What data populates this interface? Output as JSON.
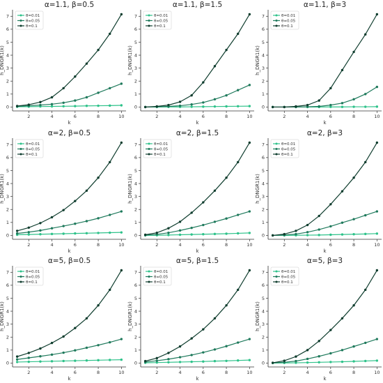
{
  "chart_data": [
    {
      "type": "line",
      "title": "α=1.1, β=0.5",
      "xlabel": "k",
      "ylabel": "h_DNGR1(k)",
      "x": [
        1,
        2,
        3,
        4,
        5,
        6,
        7,
        8,
        9,
        10
      ],
      "xticks": [
        2,
        4,
        6,
        8,
        10
      ],
      "yticks": [
        0,
        1,
        2,
        3,
        4,
        5,
        6,
        7
      ],
      "xlim": [
        0.6,
        10.4
      ],
      "ylim": [
        -0.3,
        7.5
      ],
      "grid": false,
      "legend": "top-left",
      "series": [
        {
          "name": "θ=0.01",
          "color": "#2ec28a",
          "values": [
            0.02,
            0.03,
            0.04,
            0.05,
            0.06,
            0.07,
            0.09,
            0.1,
            0.11,
            0.13
          ]
        },
        {
          "name": "θ=0.05",
          "color": "#1f7a5c",
          "values": [
            0.05,
            0.1,
            0.15,
            0.22,
            0.33,
            0.5,
            0.75,
            1.1,
            1.45,
            1.8
          ]
        },
        {
          "name": "θ=0.1",
          "color": "#0f3d2e",
          "values": [
            0.08,
            0.18,
            0.38,
            0.75,
            1.45,
            2.35,
            3.35,
            4.4,
            5.65,
            7.15
          ]
        }
      ]
    },
    {
      "type": "line",
      "title": "α=1.1, β=1.5",
      "xlabel": "k",
      "ylabel": "h_DNGR1(k)",
      "x": [
        1,
        2,
        3,
        4,
        5,
        6,
        7,
        8,
        9,
        10
      ],
      "xticks": [
        2,
        4,
        6,
        8,
        10
      ],
      "yticks": [
        0,
        1,
        2,
        3,
        4,
        5,
        6,
        7
      ],
      "xlim": [
        0.6,
        10.4
      ],
      "ylim": [
        -0.3,
        7.5
      ],
      "grid": false,
      "legend": "top-left",
      "series": [
        {
          "name": "θ=0.01",
          "color": "#2ec28a",
          "values": [
            0.0,
            0.0,
            0.01,
            0.01,
            0.02,
            0.03,
            0.04,
            0.05,
            0.06,
            0.07
          ]
        },
        {
          "name": "θ=0.05",
          "color": "#1f7a5c",
          "values": [
            0.0,
            0.02,
            0.05,
            0.1,
            0.2,
            0.35,
            0.6,
            0.9,
            1.3,
            1.7
          ]
        },
        {
          "name": "θ=0.1",
          "color": "#0f3d2e",
          "values": [
            0.0,
            0.05,
            0.15,
            0.4,
            0.9,
            1.9,
            3.15,
            4.4,
            5.65,
            7.15
          ]
        }
      ]
    },
    {
      "type": "line",
      "title": "α=1.1, β=3",
      "xlabel": "k",
      "ylabel": "h_DNGR1(k)",
      "x": [
        1,
        2,
        3,
        4,
        5,
        6,
        7,
        8,
        9,
        10
      ],
      "xticks": [
        2,
        4,
        6,
        8,
        10
      ],
      "yticks": [
        0,
        1,
        2,
        3,
        4,
        5,
        6,
        7
      ],
      "xlim": [
        0.6,
        10.4
      ],
      "ylim": [
        -0.3,
        7.5
      ],
      "grid": false,
      "legend": "top-left",
      "series": [
        {
          "name": "θ=0.01",
          "color": "#2ec28a",
          "values": [
            0.0,
            0.0,
            0.0,
            0.0,
            0.0,
            0.01,
            0.01,
            0.02,
            0.02,
            0.03
          ]
        },
        {
          "name": "θ=0.05",
          "color": "#1f7a5c",
          "values": [
            0.0,
            0.0,
            0.0,
            0.02,
            0.05,
            0.15,
            0.3,
            0.6,
            1.0,
            1.55
          ]
        },
        {
          "name": "θ=0.1",
          "color": "#0f3d2e",
          "values": [
            0.0,
            0.0,
            0.05,
            0.15,
            0.5,
            1.45,
            2.85,
            4.25,
            5.6,
            7.15
          ]
        }
      ]
    },
    {
      "type": "line",
      "title": "α=2, β=0.5",
      "xlabel": "k",
      "ylabel": "h_DNGR1(k)",
      "x": [
        1,
        2,
        3,
        4,
        5,
        6,
        7,
        8,
        9,
        10
      ],
      "xticks": [
        2,
        4,
        6,
        8,
        10
      ],
      "yticks": [
        0,
        1,
        2,
        3,
        4,
        5,
        6,
        7
      ],
      "xlim": [
        0.6,
        10.4
      ],
      "ylim": [
        -0.3,
        7.5
      ],
      "grid": false,
      "legend": "top-left",
      "series": [
        {
          "name": "θ=0.01",
          "color": "#2ec28a",
          "values": [
            0.05,
            0.07,
            0.09,
            0.11,
            0.13,
            0.15,
            0.17,
            0.19,
            0.21,
            0.23
          ]
        },
        {
          "name": "θ=0.05",
          "color": "#1f7a5c",
          "values": [
            0.15,
            0.25,
            0.38,
            0.55,
            0.72,
            0.9,
            1.1,
            1.32,
            1.58,
            1.85
          ]
        },
        {
          "name": "θ=0.1",
          "color": "#0f3d2e",
          "values": [
            0.35,
            0.6,
            0.95,
            1.4,
            1.95,
            2.65,
            3.45,
            4.45,
            5.65,
            7.15
          ]
        }
      ]
    },
    {
      "type": "line",
      "title": "α=2, β=1.5",
      "xlabel": "k",
      "ylabel": "h_DNGR1(k)",
      "x": [
        1,
        2,
        3,
        4,
        5,
        6,
        7,
        8,
        9,
        10
      ],
      "xticks": [
        2,
        4,
        6,
        8,
        10
      ],
      "yticks": [
        0,
        1,
        2,
        3,
        4,
        5,
        6,
        7
      ],
      "xlim": [
        0.6,
        10.4
      ],
      "ylim": [
        -0.3,
        7.5
      ],
      "grid": false,
      "legend": "top-left",
      "series": [
        {
          "name": "θ=0.01",
          "color": "#2ec28a",
          "values": [
            0.0,
            0.01,
            0.03,
            0.05,
            0.07,
            0.09,
            0.11,
            0.13,
            0.16,
            0.19
          ]
        },
        {
          "name": "θ=0.05",
          "color": "#1f7a5c",
          "values": [
            0.02,
            0.08,
            0.2,
            0.38,
            0.58,
            0.8,
            1.05,
            1.3,
            1.58,
            1.85
          ]
        },
        {
          "name": "θ=0.1",
          "color": "#0f3d2e",
          "values": [
            0.05,
            0.2,
            0.55,
            1.05,
            1.75,
            2.55,
            3.45,
            4.45,
            5.65,
            7.15
          ]
        }
      ]
    },
    {
      "type": "line",
      "title": "α=2, β=3",
      "xlabel": "k",
      "ylabel": "h_DNGR1(k)",
      "x": [
        1,
        2,
        3,
        4,
        5,
        6,
        7,
        8,
        9,
        10
      ],
      "xticks": [
        2,
        4,
        6,
        8,
        10
      ],
      "yticks": [
        0,
        1,
        2,
        3,
        4,
        5,
        6,
        7
      ],
      "xlim": [
        0.6,
        10.4
      ],
      "ylim": [
        -0.3,
        7.5
      ],
      "grid": false,
      "legend": "top-left",
      "series": [
        {
          "name": "θ=0.01",
          "color": "#2ec28a",
          "values": [
            0.0,
            0.0,
            0.01,
            0.02,
            0.03,
            0.05,
            0.07,
            0.09,
            0.11,
            0.14
          ]
        },
        {
          "name": "θ=0.05",
          "color": "#1f7a5c",
          "values": [
            0.0,
            0.03,
            0.1,
            0.25,
            0.45,
            0.7,
            0.98,
            1.25,
            1.55,
            1.85
          ]
        },
        {
          "name": "θ=0.1",
          "color": "#0f3d2e",
          "values": [
            0.0,
            0.1,
            0.35,
            0.8,
            1.5,
            2.4,
            3.4,
            4.45,
            5.65,
            7.15
          ]
        }
      ]
    },
    {
      "type": "line",
      "title": "α=5, β=0.5",
      "xlabel": "k",
      "ylabel": "h_DNGR1(k)",
      "x": [
        1,
        2,
        3,
        4,
        5,
        6,
        7,
        8,
        9,
        10
      ],
      "xticks": [
        2,
        4,
        6,
        8,
        10
      ],
      "yticks": [
        0,
        1,
        2,
        3,
        4,
        5,
        6,
        7
      ],
      "xlim": [
        0.6,
        10.4
      ],
      "ylim": [
        -0.3,
        7.5
      ],
      "grid": false,
      "legend": "top-left",
      "series": [
        {
          "name": "θ=0.01",
          "color": "#2ec28a",
          "values": [
            0.08,
            0.1,
            0.12,
            0.14,
            0.16,
            0.18,
            0.2,
            0.22,
            0.24,
            0.26
          ]
        },
        {
          "name": "θ=0.05",
          "color": "#1f7a5c",
          "values": [
            0.28,
            0.4,
            0.52,
            0.65,
            0.8,
            0.98,
            1.18,
            1.38,
            1.6,
            1.85
          ]
        },
        {
          "name": "θ=0.1",
          "color": "#0f3d2e",
          "values": [
            0.5,
            0.78,
            1.12,
            1.55,
            2.05,
            2.7,
            3.45,
            4.45,
            5.65,
            7.15
          ]
        }
      ]
    },
    {
      "type": "line",
      "title": "α=5, β=1.5",
      "xlabel": "k",
      "ylabel": "h_DNGR1(k)",
      "x": [
        1,
        2,
        3,
        4,
        5,
        6,
        7,
        8,
        9,
        10
      ],
      "xticks": [
        2,
        4,
        6,
        8,
        10
      ],
      "yticks": [
        0,
        1,
        2,
        3,
        4,
        5,
        6,
        7
      ],
      "xlim": [
        0.6,
        10.4
      ],
      "ylim": [
        -0.3,
        7.5
      ],
      "grid": false,
      "legend": "top-left",
      "series": [
        {
          "name": "θ=0.01",
          "color": "#2ec28a",
          "values": [
            0.02,
            0.04,
            0.06,
            0.08,
            0.1,
            0.12,
            0.15,
            0.17,
            0.2,
            0.23
          ]
        },
        {
          "name": "θ=0.05",
          "color": "#1f7a5c",
          "values": [
            0.08,
            0.18,
            0.3,
            0.45,
            0.62,
            0.82,
            1.05,
            1.3,
            1.58,
            1.85
          ]
        },
        {
          "name": "θ=0.1",
          "color": "#0f3d2e",
          "values": [
            0.15,
            0.38,
            0.78,
            1.28,
            1.9,
            2.6,
            3.45,
            4.45,
            5.65,
            7.15
          ]
        }
      ]
    },
    {
      "type": "line",
      "title": "α=5, β=3",
      "xlabel": "k",
      "ylabel": "h_DNGR1(k)",
      "x": [
        1,
        2,
        3,
        4,
        5,
        6,
        7,
        8,
        9,
        10
      ],
      "xticks": [
        2,
        4,
        6,
        8,
        10
      ],
      "yticks": [
        0,
        1,
        2,
        3,
        4,
        5,
        6,
        7
      ],
      "xlim": [
        0.6,
        10.4
      ],
      "ylim": [
        -0.3,
        7.5
      ],
      "grid": false,
      "legend": "top-left",
      "series": [
        {
          "name": "θ=0.01",
          "color": "#2ec28a",
          "values": [
            0.0,
            0.01,
            0.02,
            0.04,
            0.06,
            0.08,
            0.1,
            0.13,
            0.16,
            0.19
          ]
        },
        {
          "name": "θ=0.05",
          "color": "#1f7a5c",
          "values": [
            0.02,
            0.06,
            0.15,
            0.32,
            0.52,
            0.75,
            1.0,
            1.28,
            1.56,
            1.85
          ]
        },
        {
          "name": "θ=0.1",
          "color": "#0f3d2e",
          "values": [
            0.02,
            0.18,
            0.5,
            1.0,
            1.7,
            2.55,
            3.45,
            4.45,
            5.65,
            7.15
          ]
        }
      ]
    }
  ]
}
